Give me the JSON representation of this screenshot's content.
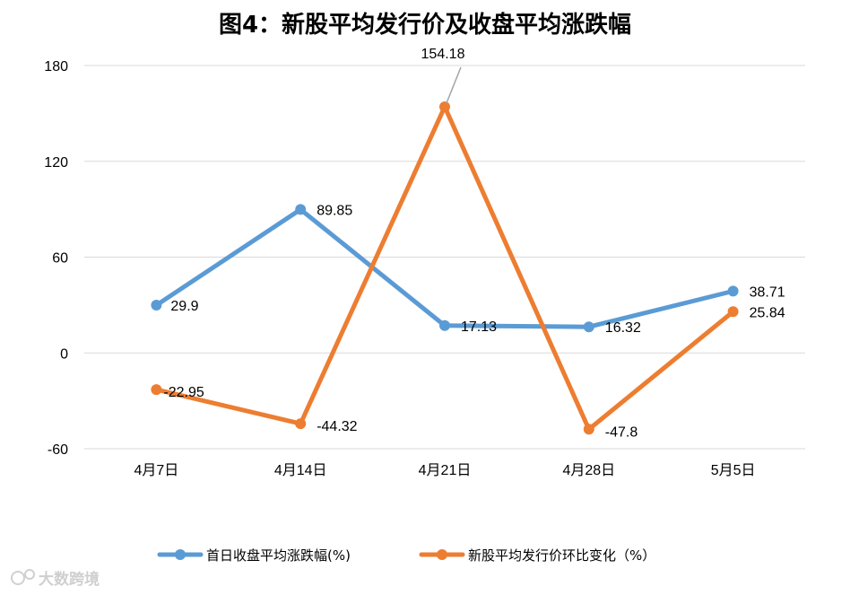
{
  "chart_data": {
    "type": "line",
    "title": "图4：新股平均发行价及收盘平均涨跌幅",
    "categories": [
      "4月7日",
      "4月14日",
      "4月21日",
      "4月28日",
      "5月5日"
    ],
    "ylim": [
      -60,
      180
    ],
    "yticks": [
      -60,
      0,
      60,
      120,
      180
    ],
    "ytick_labels": [
      "-60",
      "0",
      "60",
      "120",
      "180"
    ],
    "grid": true,
    "legend_position": "bottom",
    "series": [
      {
        "name": "首日收盘平均涨跌幅(%)",
        "color": "#5B9BD5",
        "values": [
          29.9,
          89.85,
          17.13,
          16.32,
          38.71
        ],
        "labels": [
          "29.9",
          "89.85",
          "17.13",
          "16.32",
          "38.71"
        ]
      },
      {
        "name": "新股平均发行价环比变化（%）",
        "color": "#ED7D31",
        "values": [
          -22.95,
          -44.32,
          154.18,
          -47.8,
          25.84
        ],
        "labels": [
          "-22.95",
          "-44.32",
          "154.18",
          "-47.8",
          "25.84"
        ]
      }
    ]
  },
  "watermark": "大数跨境",
  "watermark_icon": "dashuju-logo-icon"
}
